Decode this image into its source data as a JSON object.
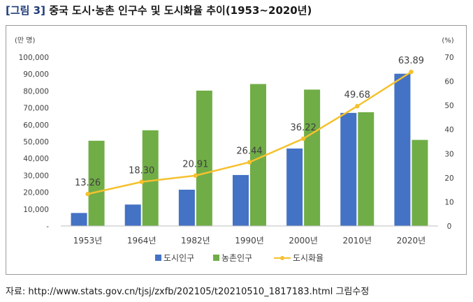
{
  "figure": {
    "label": "[그림 3]",
    "title": "중국 도시·농촌 인구수 및 도시화율 추이(1953~2020년)"
  },
  "source": "자료: http://www.stats.gov.cn/tjsj/zxfb/202105/t20210510_1817183.html 그림수정",
  "chart_data": {
    "type": "bar",
    "categories": [
      "1953년",
      "1964년",
      "1982년",
      "1990년",
      "2000년",
      "2010년",
      "2020년"
    ],
    "y_left": {
      "unit": "(만 명)",
      "range": [
        0,
        100000
      ],
      "ticks": [
        "-",
        "10,000",
        "20,000",
        "30,000",
        "40,000",
        "50,000",
        "60,000",
        "70,000",
        "80,000",
        "90,000",
        "100,000"
      ]
    },
    "y_right": {
      "unit": "(%)",
      "range": [
        0,
        70
      ],
      "ticks": [
        "0",
        "10",
        "20",
        "30",
        "40",
        "50",
        "60",
        "70"
      ]
    },
    "series": [
      {
        "name": "도시인구",
        "type": "bar",
        "axis": "left",
        "color": "#4472c4",
        "values": [
          7700,
          12700,
          21500,
          30200,
          45900,
          67000,
          90200
        ]
      },
      {
        "name": "농촌인구",
        "type": "bar",
        "axis": "left",
        "color": "#70ad47",
        "values": [
          50500,
          56700,
          80200,
          84100,
          80800,
          67400,
          51000
        ]
      },
      {
        "name": "도시화율",
        "type": "line",
        "axis": "right",
        "color": "#f5c12e",
        "values": [
          13.26,
          18.3,
          20.91,
          26.44,
          36.22,
          49.68,
          63.89
        ],
        "labels": [
          "13.26",
          "18.30",
          "20.91",
          "26.44",
          "36.22",
          "49.68",
          "63.89"
        ]
      }
    ],
    "grid": false,
    "legend": "bottom"
  }
}
